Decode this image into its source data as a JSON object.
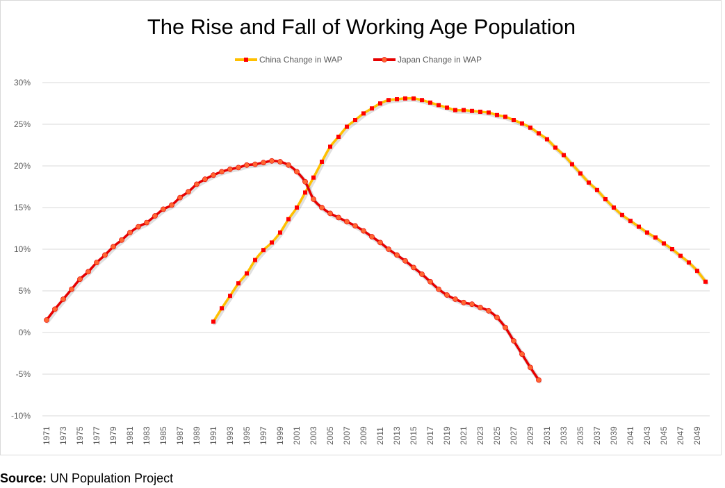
{
  "chart_data": {
    "type": "line",
    "title": "The Rise and Fall of Working Age Population",
    "xlabel": "",
    "ylabel": "",
    "ylim": [
      -10,
      30
    ],
    "yticks": [
      "30%",
      "25%",
      "20%",
      "15%",
      "10%",
      "5%",
      "0%",
      "-5%",
      "-10%"
    ],
    "xlim": [
      1971,
      2050
    ],
    "xticks": [
      "1971",
      "1973",
      "1975",
      "1977",
      "1979",
      "1981",
      "1983",
      "1985",
      "1987",
      "1989",
      "1991",
      "1993",
      "1995",
      "1997",
      "1999",
      "2001",
      "2003",
      "2005",
      "2007",
      "2009",
      "2011",
      "2013",
      "2015",
      "2017",
      "2019",
      "2021",
      "2023",
      "2025",
      "2027",
      "2029",
      "2031",
      "2033",
      "2035",
      "2037",
      "2039",
      "2041",
      "2043",
      "2045",
      "2047",
      "2049"
    ],
    "grid": true,
    "legend_position": "top-center",
    "series": [
      {
        "name": "China Change in WAP",
        "line_color": "#ffc000",
        "marker_color": "#ff0000",
        "marker": "square",
        "x": [
          1991,
          1992,
          1993,
          1994,
          1995,
          1996,
          1997,
          1998,
          1999,
          2000,
          2001,
          2002,
          2003,
          2004,
          2005,
          2006,
          2007,
          2008,
          2009,
          2010,
          2011,
          2012,
          2013,
          2014,
          2015,
          2016,
          2017,
          2018,
          2019,
          2020,
          2021,
          2022,
          2023,
          2024,
          2025,
          2026,
          2027,
          2028,
          2029,
          2030,
          2031,
          2032,
          2033,
          2034,
          2035,
          2036,
          2037,
          2038,
          2039,
          2040,
          2041,
          2042,
          2043,
          2044,
          2045,
          2046,
          2047,
          2048,
          2049,
          2050
        ],
        "values": [
          1.3,
          2.9,
          4.4,
          5.9,
          7.1,
          8.7,
          9.9,
          10.8,
          12.0,
          13.6,
          15.0,
          16.8,
          18.6,
          20.5,
          22.3,
          23.5,
          24.7,
          25.5,
          26.3,
          26.9,
          27.5,
          27.9,
          28.0,
          28.1,
          28.1,
          27.9,
          27.6,
          27.3,
          27.0,
          26.7,
          26.7,
          26.6,
          26.5,
          26.4,
          26.1,
          25.9,
          25.5,
          25.1,
          24.6,
          23.9,
          23.2,
          22.2,
          21.3,
          20.2,
          19.1,
          18.0,
          17.1,
          16.0,
          15.0,
          14.1,
          13.4,
          12.7,
          12.0,
          11.4,
          10.7,
          10.0,
          9.2,
          8.4,
          7.4,
          6.1
        ]
      },
      {
        "name": "Japan Change in WAP",
        "line_color": "#e60000",
        "marker_color": "#ff6633",
        "marker": "circle",
        "x": [
          1971,
          1972,
          1973,
          1974,
          1975,
          1976,
          1977,
          1978,
          1979,
          1980,
          1981,
          1982,
          1983,
          1984,
          1985,
          1986,
          1987,
          1988,
          1989,
          1990,
          1991,
          1992,
          1993,
          1994,
          1995,
          1996,
          1997,
          1998,
          1999,
          2000,
          2001,
          2002,
          2003,
          2004,
          2005,
          2006,
          2007,
          2008,
          2009,
          2010,
          2011,
          2012,
          2013,
          2014,
          2015,
          2016,
          2017,
          2018,
          2019,
          2020,
          2021,
          2022,
          2023,
          2024,
          2025,
          2026,
          2027,
          2028,
          2029,
          2030
        ],
        "values": [
          1.5,
          2.8,
          4.0,
          5.2,
          6.4,
          7.3,
          8.4,
          9.3,
          10.3,
          11.1,
          12.0,
          12.7,
          13.2,
          14.0,
          14.8,
          15.3,
          16.2,
          16.9,
          17.8,
          18.4,
          18.9,
          19.3,
          19.6,
          19.8,
          20.1,
          20.2,
          20.4,
          20.6,
          20.5,
          20.1,
          19.3,
          18.1,
          16.0,
          15.0,
          14.3,
          13.8,
          13.3,
          12.8,
          12.2,
          11.5,
          10.8,
          10.0,
          9.3,
          8.6,
          7.8,
          7.0,
          6.1,
          5.2,
          4.5,
          4.0,
          3.6,
          3.4,
          3.0,
          2.6,
          1.8,
          0.6,
          -1.0,
          -2.6,
          -4.2,
          -5.7
        ]
      }
    ]
  },
  "source": {
    "label": "Source:",
    "text": "UN Population Project"
  }
}
